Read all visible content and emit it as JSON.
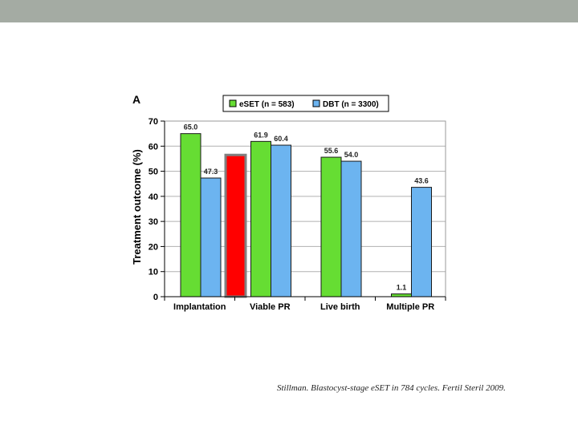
{
  "slide": {
    "citation": "Stillman. Blastocyst-stage eSET in 784 cycles. Fertil Steril 2009."
  },
  "colors": {
    "top_bar": "#a4aba3",
    "eset": "#66dd33",
    "dbt": "#6cb4f0",
    "highlight_fill": "#ff0000",
    "highlight_border": "#808080"
  },
  "chart_data": {
    "type": "bar",
    "panel_label": "A",
    "title": "",
    "xlabel": "",
    "ylabel": "Treatment outcome (%)",
    "ylim": [
      0,
      70
    ],
    "yticks": [
      0,
      10,
      20,
      30,
      40,
      50,
      60,
      70
    ],
    "grid": true,
    "legend_position": "top-right",
    "categories": [
      "Implantation",
      "Viable PR",
      "Live birth",
      "Multiple PR"
    ],
    "series": [
      {
        "name": "eSET (n = 583)",
        "color": "#66dd33",
        "values": [
          65.0,
          61.9,
          55.6,
          1.1
        ],
        "labels": [
          "65.0",
          "61.9",
          "55.6",
          "1.1"
        ]
      },
      {
        "name": "DBT (n = 3300)",
        "color": "#6cb4f0",
        "values": [
          47.3,
          60.4,
          54.0,
          43.6
        ],
        "labels": [
          "47.3",
          "60.4",
          "54.0",
          "43.6"
        ]
      }
    ],
    "annotations": [
      {
        "type": "highlight_bar",
        "category": "Implantation",
        "value": 56.5,
        "fill": "#ff0000",
        "border": "#808080"
      }
    ]
  }
}
